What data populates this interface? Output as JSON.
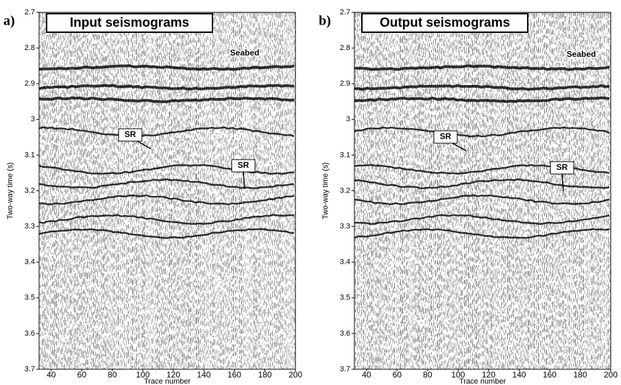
{
  "chart_data": [
    {
      "type": "seismic",
      "panel_label": "a)",
      "title": "Input seismograms",
      "xlabel": "Trace number",
      "ylabel": "Two-way time (s)",
      "xlim": [
        32,
        200
      ],
      "xticks": [
        40,
        60,
        80,
        100,
        120,
        140,
        160,
        180,
        200
      ],
      "ylim": [
        2.7,
        3.7
      ],
      "y_inverted": true,
      "yticks": [
        2.7,
        2.8,
        2.9,
        3,
        3.1,
        3.2,
        3.3,
        3.4,
        3.5,
        3.6,
        3.7
      ],
      "annotations": [
        "Seabed",
        "SR",
        "SR"
      ]
    },
    {
      "type": "seismic",
      "panel_label": "b)",
      "title": "Output seismograms",
      "xlabel": "Trace number",
      "ylabel": "Two-way time (s)",
      "xlim": [
        32,
        200
      ],
      "xticks": [
        40,
        60,
        80,
        100,
        120,
        140,
        160,
        180,
        200
      ],
      "ylim": [
        2.7,
        3.7
      ],
      "y_inverted": true,
      "yticks": [
        2.7,
        2.8,
        2.9,
        3,
        3.1,
        3.2,
        3.3,
        3.4,
        3.5,
        3.6,
        3.7
      ],
      "annotations": [
        "Seabed",
        "SR",
        "SR"
      ]
    }
  ]
}
